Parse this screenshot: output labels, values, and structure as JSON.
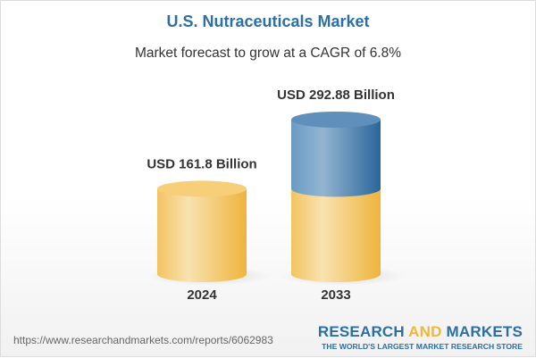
{
  "chart_data": {
    "type": "bar",
    "title": "U.S. Nutraceuticals Market",
    "subtitle": "Market forecast to grow at a CAGR of 6.8%",
    "categories": [
      "2024",
      "2033"
    ],
    "values": [
      161.8,
      292.88
    ],
    "data_labels": [
      "USD 161.8 Billion",
      "USD 292.88 Billion"
    ],
    "unit": "USD Billion",
    "style": "3d-cylinder",
    "colors": {
      "base": "#f2c35a",
      "growth": "#4f86b5"
    }
  },
  "footer": {
    "url": "https://www.researchandmarkets.com/reports/6062983",
    "logo_part1": "RESEARCH ",
    "logo_part2": "AND",
    "logo_part3": " MARKETS",
    "tagline": "THE WORLD'S LARGEST MARKET RESEARCH STORE"
  }
}
